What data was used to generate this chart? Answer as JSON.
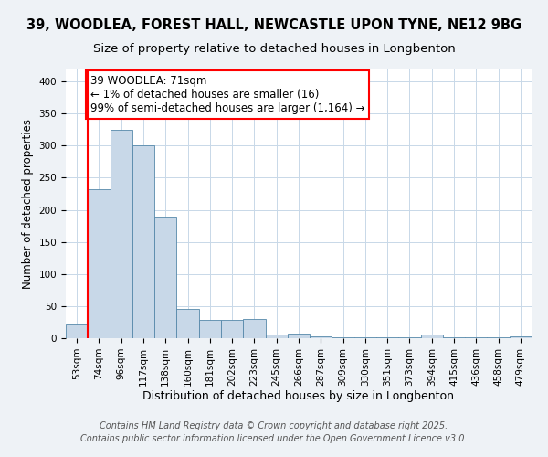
{
  "title1": "39, WOODLEA, FOREST HALL, NEWCASTLE UPON TYNE, NE12 9BG",
  "title2": "Size of property relative to detached houses in Longbenton",
  "xlabel": "Distribution of detached houses by size in Longbenton",
  "ylabel": "Number of detached properties",
  "bins": [
    "53sqm",
    "74sqm",
    "96sqm",
    "117sqm",
    "138sqm",
    "160sqm",
    "181sqm",
    "202sqm",
    "223sqm",
    "245sqm",
    "266sqm",
    "287sqm",
    "309sqm",
    "330sqm",
    "351sqm",
    "373sqm",
    "394sqm",
    "415sqm",
    "436sqm",
    "458sqm",
    "479sqm"
  ],
  "values": [
    22,
    232,
    325,
    300,
    190,
    45,
    28,
    28,
    30,
    5,
    7,
    3,
    2,
    1,
    1,
    1,
    5,
    1,
    1,
    1,
    3
  ],
  "bar_color": "#c8d8e8",
  "bar_edge_color": "#5588aa",
  "vline_x": 0.5,
  "vline_color": "red",
  "annotation_line1": "39 WOODLEA: 71sqm",
  "annotation_line2": "← 1% of detached houses are smaller (16)",
  "annotation_line3": "99% of semi-detached houses are larger (1,164) →",
  "annotation_box_color": "white",
  "annotation_box_edge_color": "red",
  "ylim": [
    0,
    420
  ],
  "yticks": [
    0,
    50,
    100,
    150,
    200,
    250,
    300,
    350,
    400
  ],
  "footer1": "Contains HM Land Registry data © Crown copyright and database right 2025.",
  "footer2": "Contains public sector information licensed under the Open Government Licence v3.0.",
  "bg_color": "#eef2f6",
  "plot_bg_color": "white",
  "grid_color": "#c8d8e8",
  "title1_fontsize": 10.5,
  "title2_fontsize": 9.5,
  "xlabel_fontsize": 9,
  "ylabel_fontsize": 8.5,
  "tick_fontsize": 7.5,
  "annotation_fontsize": 8.5,
  "footer_fontsize": 7
}
